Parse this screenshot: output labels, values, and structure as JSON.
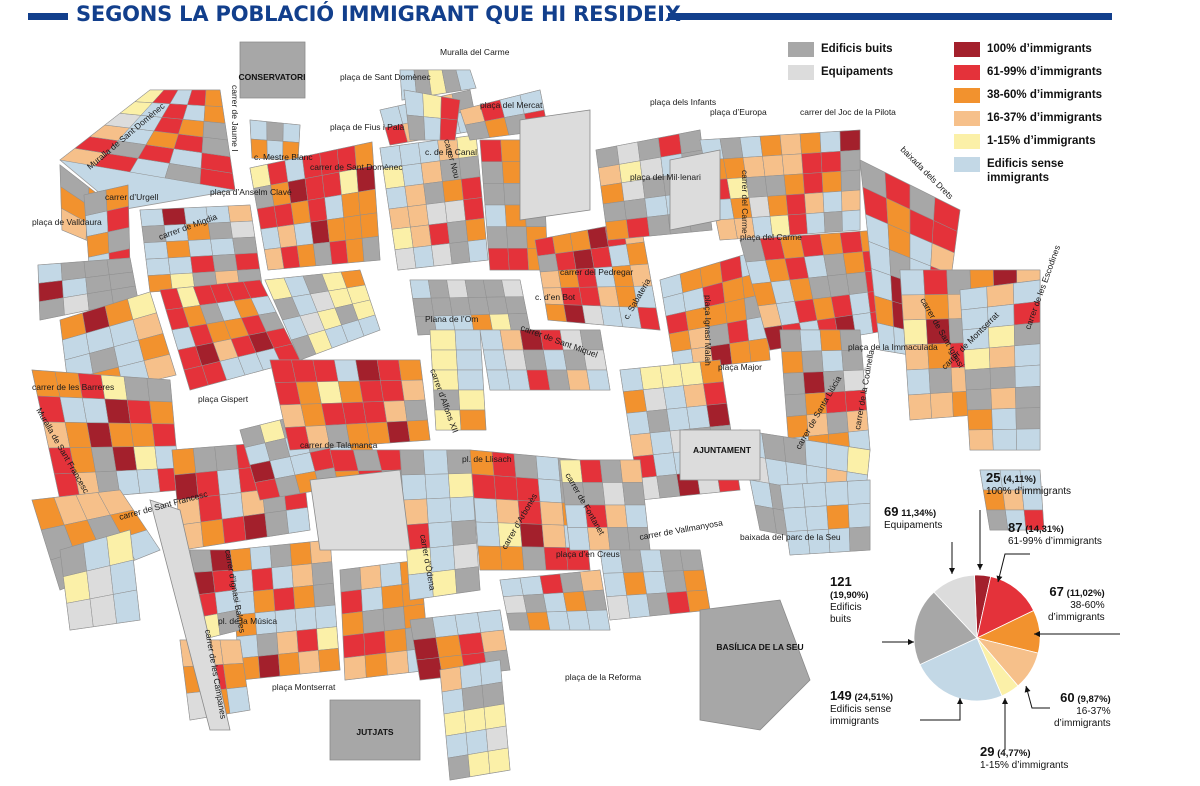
{
  "title": "SEGONS LA POBLACIÓ IMMIGRANT QUE HI RESIDEIX",
  "colors": {
    "accent": "#123f8c",
    "pct100": "#a3202c",
    "pct61_99": "#e4323a",
    "pct38_60": "#f2922e",
    "pct16_37": "#f6c08a",
    "pct1_15": "#fbf0a8",
    "sense": "#c3d8e6",
    "buits": "#a7a7a7",
    "equip": "#dcdcdc",
    "street": "#ffffff",
    "outline": "#9b9b9b"
  },
  "legend": {
    "buits": "Edificis buits",
    "equipaments": "Equipaments",
    "pct100": "100% d’immigrants",
    "pct61_99": "61-99% d’immigrants",
    "pct38_60": "38-60% d’immigrants",
    "pct16_37": "16-37% d’immigrants",
    "pct1_15": "1-15% d’immigrants",
    "sense": "Edificis sense immigrants"
  },
  "pie": [
    {
      "key": "pct100",
      "count": "25",
      "pct": "(4,11%)",
      "label": "100% d’immigrants",
      "value": 4.11
    },
    {
      "key": "pct61_99",
      "count": "87",
      "pct": "(14,31%)",
      "label": "61-99% d’immigrants",
      "value": 14.31
    },
    {
      "key": "pct38_60",
      "count": "67",
      "pct": "(11,02%)",
      "label": "38-60% d’immigrants",
      "value": 11.02
    },
    {
      "key": "pct16_37",
      "count": "60",
      "pct": "(9,87%)",
      "label": "16-37% d’immigrants",
      "value": 9.87
    },
    {
      "key": "pct1_15",
      "count": "29",
      "pct": "(4,77%)",
      "label": "1-15% d’immigrants",
      "value": 4.77
    },
    {
      "key": "sense",
      "count": "149",
      "pct": "(24,51%)",
      "label": "Edificis sense immigrants",
      "value": 24.51
    },
    {
      "key": "buits",
      "count": "121",
      "pct": "(19,90%)",
      "label": "Edificis buits",
      "value": 19.9
    },
    {
      "key": "equip",
      "count": "69",
      "pct": "11,34%)",
      "label": "Equipaments",
      "value": 11.34
    }
  ],
  "labels": {
    "carrer_jaume_i": "carrer de Jaume I",
    "muralla_sant_domenec": "Muralla de Sant Domènec",
    "conservatori": "CONSERVATORI",
    "placa_sant_domenec": "plaça de Sant Domènec",
    "muralla_carme": "Muralla del Carme",
    "placa_mercat": "plaça del Mercat",
    "placa_infants": "plaça dels Infants",
    "placa_europa": "plaça d’Europa",
    "carrer_joc_pilota": "carrer del Joc de la Pilota",
    "c_mestre_blanc": "c. Mestre Blanc",
    "placa_fius": "plaça de Fius i Palà",
    "carrer_sant_domenec": "carrer de Sant Domènec",
    "placa_anselm": "plaça d’Anselm Clavé",
    "carrer_urgell": "carrer d’Urgell",
    "placa_valldaura": "plaça de Valldaura",
    "carrer_migdia": "carrer de Migdia",
    "placa_milcentenari": "plaça del Mil·lenari",
    "carrer_carme": "carrer del Carme",
    "baixada_dreta": "baixada dels Drets",
    "placa_carme": "plaça del Carme",
    "carrer_pedregar": "carrer del Pedregar",
    "c_bolla": "c. d’en Bot",
    "placa_ignasi": "plaça Ignasi Malah",
    "plana_om": "Plana de l’Om",
    "carrer_sant_miquel": "carrer de Sant Miquel",
    "c_sabateria": "c. Sabateria",
    "carrer_sant_ignasi": "carrer de Sant Ignasi",
    "placa_immaculada": "plaça de la Immaculada",
    "carrer_montserrat": "carrer de Montserrat",
    "carrer_escodines": "carrer de les Escodines",
    "muralla_sant_francesc": "Muralla de Sant Francesc",
    "carrer_barreres": "carrer de les Barreres",
    "placa_gispert": "plaça Gispert",
    "carrer_talamanca": "carrer de Talamanca",
    "carrer_alfons_xii": "carrer d’Alfons XII",
    "pl_llisach": "pl. de Llisach",
    "placa_major": "plaça Major",
    "ajuntament": "AJUNTAMENT",
    "carrer_santa_llucia": "carrer de Santa Llúcia",
    "carrer_cadira": "carrer de la Codinella",
    "carrer_sant_francesc": "carrer de Sant Francesc",
    "carrer_sant_maurici": "carrer de Sant Maurici",
    "carrer_fontanet": "carrer de Fontanet",
    "carrer_arbonès": "carrer d’Arbonès",
    "placa_creus": "plaça d’en Creus",
    "carrer_vallmanyosa": "carrer de Vallmanyosa",
    "baixada_parc": "baixada del parc de la Seu",
    "basilica": "BASÍLICA DE LA SEU",
    "pl_musica": "pl. de la Música",
    "carrer_campanes": "carrer de les Campanes",
    "placa_montserrat": "plaça Montserrat",
    "jutjats": "JUTJATS",
    "placa_reforma": "plaça de la Reforma",
    "carrer_odena": "carrer d’Òdena",
    "carrer_ignasi": "carrer d’Ignasi Balmes",
    "carrer_nou": "carrer Nou",
    "c_canal": "c. de la Canal"
  }
}
